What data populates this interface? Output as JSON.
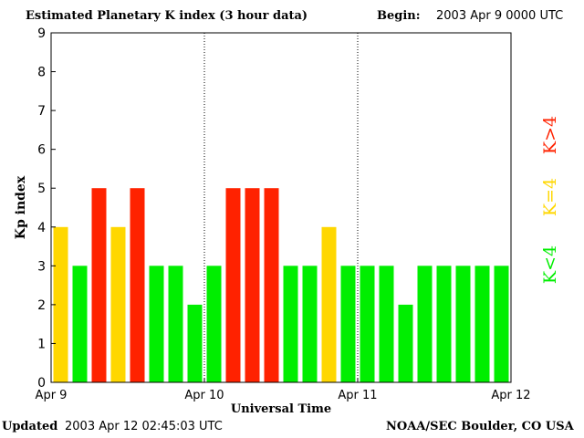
{
  "header": {
    "title": "Estimated Planetary K index (3 hour data)",
    "begin_label": "Begin:",
    "begin_value": "2003 Apr 9 0000 UTC"
  },
  "footer": {
    "updated_label": "Updated",
    "updated_value": "2003 Apr 12 02:45:03 UTC",
    "source": "NOAA/SEC Boulder, CO USA"
  },
  "legend": {
    "high": "K>4",
    "mid": "K=4",
    "low": "K<4"
  },
  "colors": {
    "low": "#00ee00",
    "mid": "#ffd700",
    "high": "#ff2200"
  },
  "chart_data": {
    "type": "bar",
    "title": "Estimated Planetary K index (3 hour data)",
    "xlabel": "Universal Time",
    "ylabel": "Kp index",
    "ylim": [
      0,
      9
    ],
    "yticks": [
      0,
      1,
      2,
      3,
      4,
      5,
      6,
      7,
      8,
      9
    ],
    "xticks": [
      "Apr 9",
      "Apr 10",
      "Apr 11",
      "Apr 12"
    ],
    "interval_hours": 3,
    "values": [
      4,
      3,
      5,
      4,
      5,
      3,
      3,
      2,
      3,
      5,
      5,
      5,
      3,
      3,
      4,
      3,
      3,
      3,
      2,
      3,
      3,
      3,
      3,
      3
    ],
    "grid": false,
    "day_separators": true
  }
}
